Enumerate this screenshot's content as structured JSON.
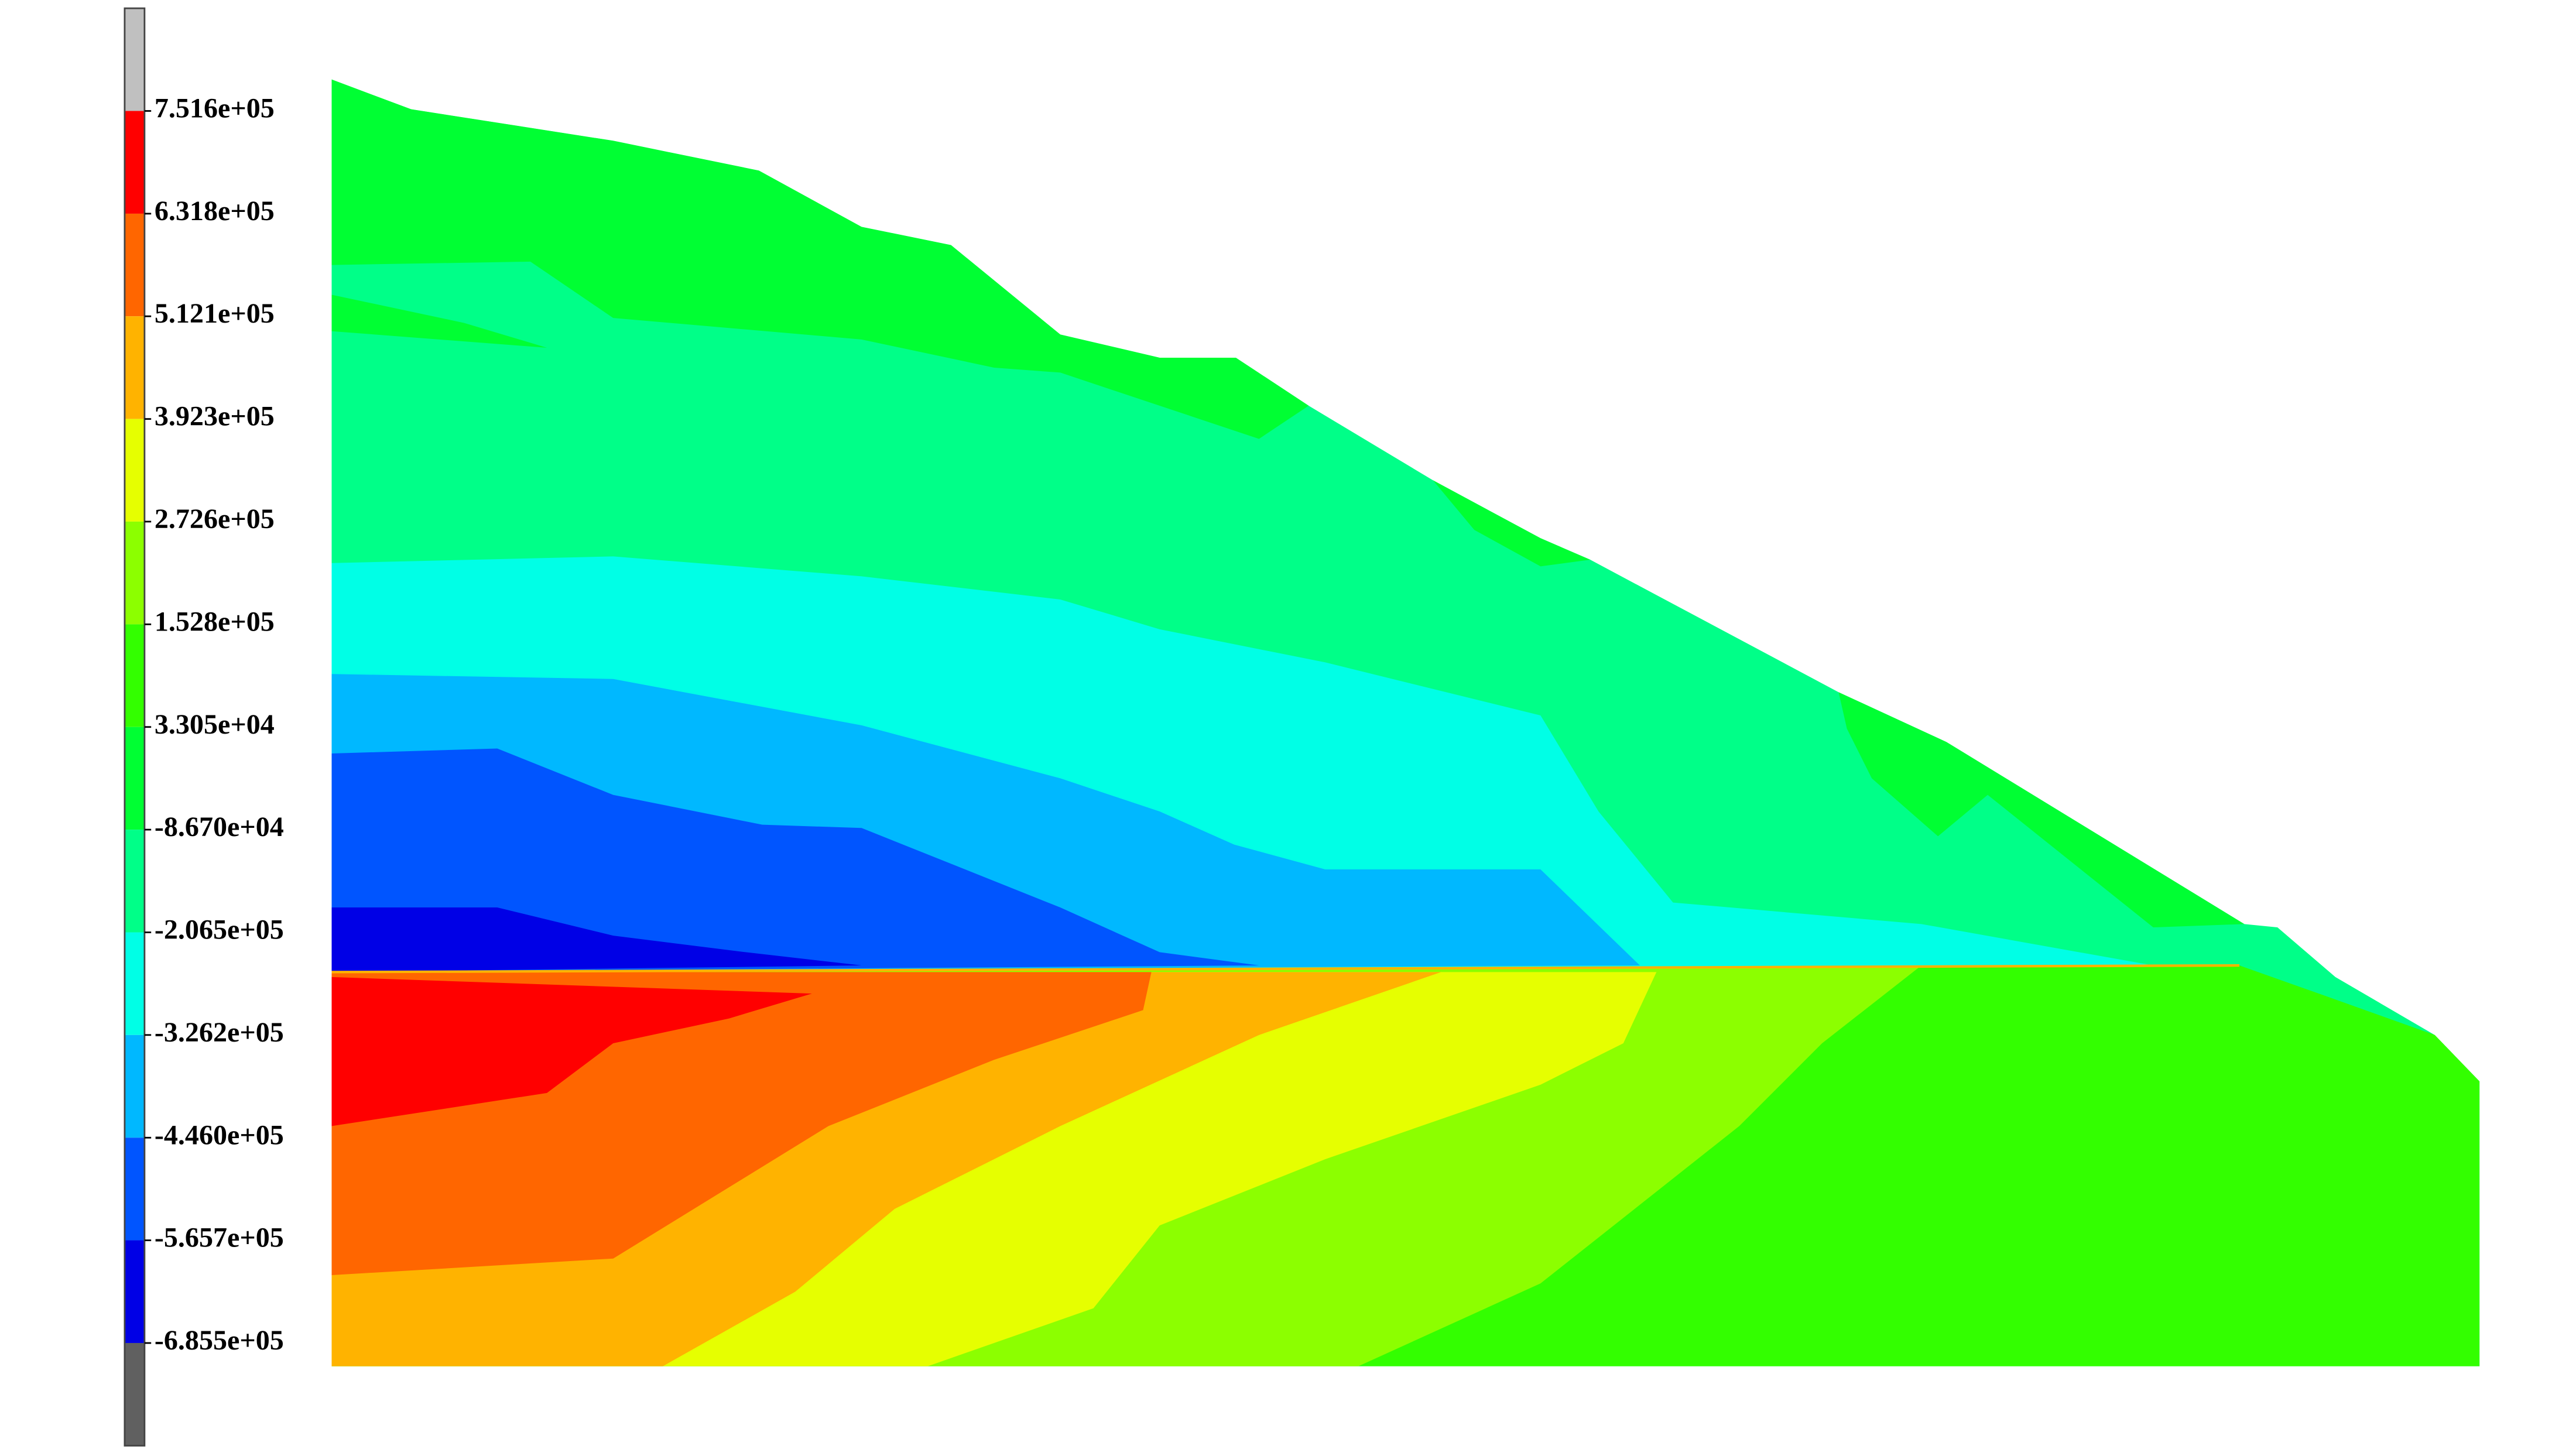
{
  "chart_data": {
    "type": "contour",
    "levels": [
      {
        "value": 751600,
        "label": "7.516e+05"
      },
      {
        "value": 631800,
        "label": "6.318e+05"
      },
      {
        "value": 512100,
        "label": "5.121e+05"
      },
      {
        "value": 392300,
        "label": "3.923e+05"
      },
      {
        "value": 272600,
        "label": "2.726e+05"
      },
      {
        "value": 152800,
        "label": "1.528e+05"
      },
      {
        "value": 33050,
        "label": "3.305e+04"
      },
      {
        "value": -86700,
        "label": "-8.670e+04"
      },
      {
        "value": -206500,
        "label": "-2.065e+05"
      },
      {
        "value": -326200,
        "label": "-3.262e+05"
      },
      {
        "value": -446000,
        "label": "-4.460e+05"
      },
      {
        "value": -565700,
        "label": "-5.657e+05"
      },
      {
        "value": -685500,
        "label": "-6.855e+05"
      }
    ],
    "colors": [
      "#ff0000",
      "#ff6600",
      "#ffb300",
      "#e6ff00",
      "#8cff00",
      "#33ff00",
      "#00ff33",
      "#00ff88",
      "#00ffe6",
      "#00b8ff",
      "#0055ff",
      "#0000e6"
    ],
    "over_color": "#c0c0c0",
    "under_color": "#606060"
  }
}
